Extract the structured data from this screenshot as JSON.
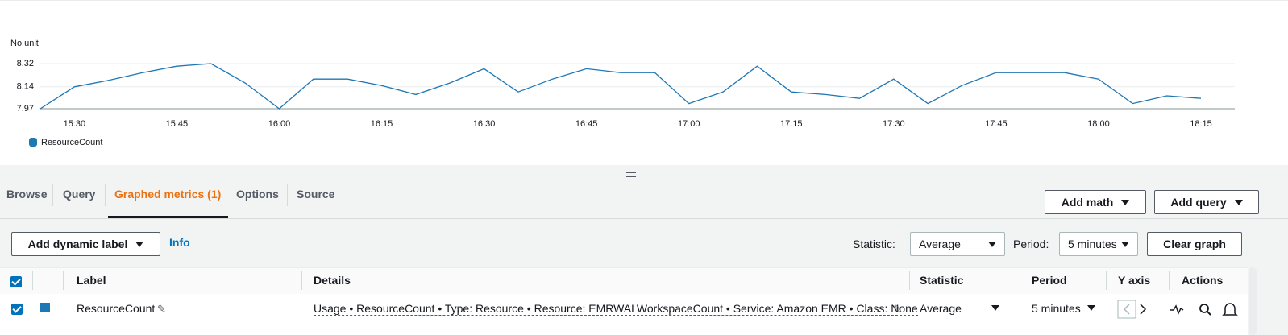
{
  "chart_data": {
    "type": "line",
    "y_label": "No unit",
    "categories": [
      null,
      "15:30",
      null,
      null,
      "15:45",
      null,
      null,
      "16:00",
      null,
      null,
      "16:15",
      null,
      null,
      "16:30",
      null,
      null,
      "16:45",
      null,
      null,
      "17:00",
      null,
      null,
      "17:15",
      null,
      null,
      "17:30",
      null,
      null,
      "17:45",
      null,
      null,
      "18:00",
      null,
      null,
      "18:15"
    ],
    "series": [
      {
        "name": "ResourceCount",
        "color": "#1f77b4",
        "values": [
          7.97,
          8.14,
          8.19,
          8.25,
          8.3,
          8.32,
          8.17,
          7.97,
          8.2,
          8.2,
          8.15,
          8.08,
          8.17,
          8.28,
          8.1,
          8.2,
          8.28,
          8.25,
          8.25,
          8.01,
          8.1,
          8.3,
          8.1,
          8.08,
          8.05,
          8.2,
          8.01,
          8.15,
          8.25,
          8.25,
          8.25,
          8.2,
          8.01,
          8.07,
          8.05
        ]
      }
    ],
    "ylim": [
      7.97,
      8.32
    ],
    "yticks": [
      7.97,
      8.14,
      8.32
    ],
    "grid": true
  },
  "tabs": [
    "Browse",
    "Query",
    "Graphed metrics (1)",
    "Options",
    "Source"
  ],
  "buttons": {
    "add_math": "Add math",
    "add_query": "Add query",
    "add_dynamic_label": "Add dynamic label",
    "info": "Info",
    "clear_graph": "Clear graph"
  },
  "controls": {
    "statistic_label": "Statistic:",
    "statistic_value": "Average",
    "period_label": "Period:",
    "period_value": "5 minutes"
  },
  "table": {
    "headers": [
      "Label",
      "Details",
      "Statistic",
      "Period",
      "Y axis",
      "Actions"
    ],
    "rows": [
      [
        "ResourceCount",
        "Usage • ResourceCount • Type: Resource • Resource: EMRWALWorkspaceCount • Service: Amazon EMR • Class: None",
        "Average",
        "5 minutes"
      ]
    ]
  }
}
